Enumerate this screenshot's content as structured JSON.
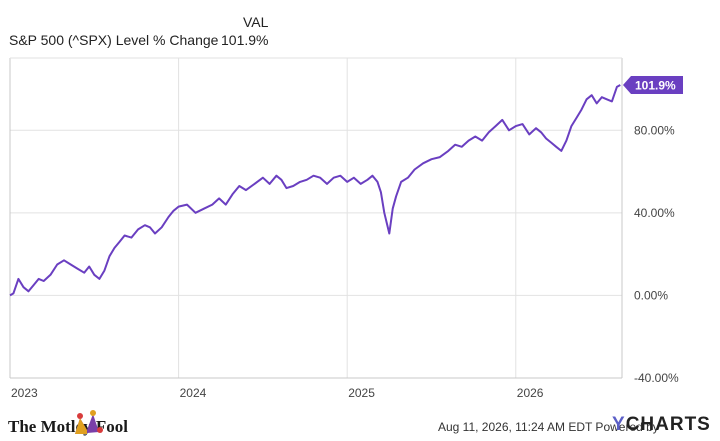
{
  "legend": {
    "column_header": "VAL",
    "series_label": "S&P 500 (^SPX) Level % Change",
    "series_value": "101.9%"
  },
  "chart_data": {
    "type": "line",
    "title": "",
    "xlabel": "",
    "ylabel": "",
    "x_ticks": [
      "2023",
      "2024",
      "2025",
      "2026"
    ],
    "y_ticks": [
      "-40.00%",
      "0.00%",
      "40.00%",
      "80.00%"
    ],
    "ylim": [
      -40,
      115
    ],
    "xlim": [
      2023.0,
      2026.63
    ],
    "grid": true,
    "end_label": "101.9%",
    "colors": {
      "line": "#6a3fc1",
      "grid": "#e2e2e2",
      "axis": "#c8c8c8"
    },
    "series": [
      {
        "name": "S&P 500 (^SPX) Level % Change",
        "x": [
          2023.0,
          2023.02,
          2023.05,
          2023.08,
          2023.11,
          2023.14,
          2023.17,
          2023.2,
          2023.24,
          2023.28,
          2023.32,
          2023.36,
          2023.4,
          2023.44,
          2023.47,
          2023.5,
          2023.53,
          2023.56,
          2023.59,
          2023.62,
          2023.65,
          2023.68,
          2023.72,
          2023.76,
          2023.8,
          2023.83,
          2023.86,
          2023.9,
          2023.94,
          2023.97,
          2024.0,
          2024.05,
          2024.1,
          2024.15,
          2024.2,
          2024.24,
          2024.28,
          2024.32,
          2024.36,
          2024.4,
          2024.45,
          2024.5,
          2024.54,
          2024.58,
          2024.61,
          2024.64,
          2024.68,
          2024.72,
          2024.76,
          2024.8,
          2024.84,
          2024.88,
          2024.92,
          2024.96,
          2025.0,
          2025.04,
          2025.08,
          2025.12,
          2025.15,
          2025.18,
          2025.2,
          2025.22,
          2025.25,
          2025.27,
          2025.29,
          2025.32,
          2025.36,
          2025.4,
          2025.45,
          2025.5,
          2025.55,
          2025.6,
          2025.64,
          2025.68,
          2025.72,
          2025.76,
          2025.8,
          2025.84,
          2025.88,
          2025.92,
          2025.96,
          2026.0,
          2026.04,
          2026.08,
          2026.12,
          2026.15,
          2026.18,
          2026.21,
          2026.24,
          2026.27,
          2026.3,
          2026.33,
          2026.36,
          2026.39,
          2026.42,
          2026.45,
          2026.48,
          2026.51,
          2026.54,
          2026.57,
          2026.6,
          2026.62
        ],
        "values": [
          0,
          1,
          8,
          4,
          2,
          5,
          8,
          7,
          10,
          15,
          17,
          15,
          13,
          11,
          14,
          10,
          8,
          12,
          19,
          23,
          26,
          29,
          28,
          32,
          34,
          33,
          30,
          33,
          38,
          41,
          43,
          44,
          40,
          42,
          44,
          47,
          44,
          49,
          53,
          51,
          54,
          57,
          54,
          58,
          56,
          52,
          53,
          55,
          56,
          58,
          57,
          54,
          57,
          58,
          55,
          57,
          54,
          56,
          58,
          55,
          50,
          40,
          30,
          42,
          48,
          55,
          57,
          61,
          64,
          66,
          67,
          70,
          73,
          72,
          75,
          77,
          75,
          79,
          82,
          85,
          80,
          82,
          83,
          78,
          81,
          79,
          76,
          74,
          72,
          70,
          75,
          82,
          86,
          90,
          95,
          97,
          93,
          96,
          95,
          94,
          101,
          101.9
        ]
      }
    ]
  },
  "footer": {
    "brand": "The Motley Fool",
    "timestamp": "Aug 11, 2026, 11:24 AM EDT Powered by",
    "provider_y": "Y",
    "provider_rest": "CHARTS"
  }
}
